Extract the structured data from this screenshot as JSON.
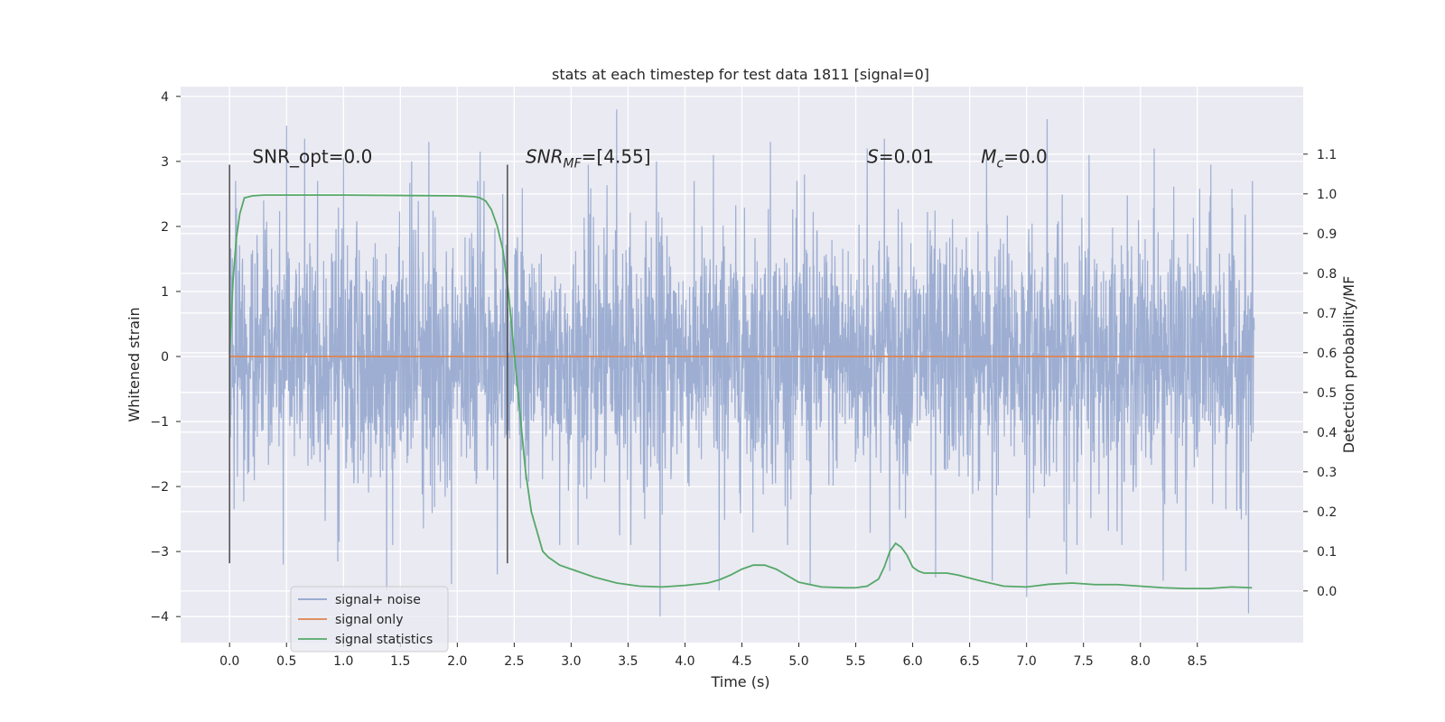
{
  "chart_data": {
    "type": "line",
    "title": "stats at each timestep for test data 1811 [signal=0]",
    "xlabel": "Time (s)",
    "ylabel": "Whitened strain",
    "y2label": "Detection probability/MF",
    "xlim": [
      -0.43,
      9.43
    ],
    "ylim": [
      -4.4,
      4.15
    ],
    "y2lim": [
      -0.13,
      1.27
    ],
    "xticks": [
      0.0,
      0.5,
      1.0,
      1.5,
      2.0,
      2.5,
      3.0,
      3.5,
      4.0,
      4.5,
      5.0,
      5.5,
      6.0,
      6.5,
      7.0,
      7.5,
      8.0,
      8.5
    ],
    "xtick_labels": [
      "0.0",
      "0.5",
      "1.0",
      "1.5",
      "2.0",
      "2.5",
      "3.0",
      "3.5",
      "4.0",
      "4.5",
      "5.0",
      "5.5",
      "6.0",
      "6.5",
      "7.0",
      "7.5",
      "8.0",
      "8.5"
    ],
    "yticks": [
      4,
      3,
      2,
      1,
      0,
      -1,
      -2,
      -3,
      -4
    ],
    "ytick_labels": [
      "4",
      "3",
      "2",
      "1",
      "0",
      "−1",
      "−2",
      "−3",
      "−4"
    ],
    "y2ticks": [
      1.1,
      1.0,
      0.9,
      0.8,
      0.7,
      0.6,
      0.5,
      0.4,
      0.3,
      0.2,
      0.1,
      0.0
    ],
    "y2tick_labels": [
      "1.1",
      "1.0",
      "0.9",
      "0.8",
      "0.7",
      "0.6",
      "0.5",
      "0.4",
      "0.3",
      "0.2",
      "0.1",
      "0.0"
    ],
    "grid": true,
    "legend_position": "bottom-left",
    "series": [
      {
        "name": "signal+ noise",
        "axis": "left",
        "kind": "noise",
        "color": "#8fa3cc",
        "t_start": 0.0,
        "t_end": 9.0,
        "approx_band": [
          -1.3,
          1.1
        ],
        "peaks_high": [
          [
            0.04,
            2.25
          ],
          [
            0.3,
            2.4
          ],
          [
            0.5,
            3.55
          ],
          [
            0.66,
            3.35
          ],
          [
            1.0,
            3.05
          ],
          [
            1.6,
            3.0
          ],
          [
            1.75,
            3.3
          ],
          [
            2.2,
            3.15
          ],
          [
            2.4,
            2.5
          ],
          [
            3.15,
            2.95
          ],
          [
            3.4,
            3.8
          ],
          [
            3.75,
            3.0
          ],
          [
            4.25,
            3.1
          ],
          [
            4.75,
            3.3
          ],
          [
            5.05,
            2.8
          ],
          [
            5.6,
            3.2
          ],
          [
            5.75,
            3.35
          ],
          [
            6.2,
            2.7
          ],
          [
            6.65,
            3.05
          ],
          [
            7.18,
            3.65
          ],
          [
            7.55,
            3.1
          ],
          [
            8.12,
            3.2
          ],
          [
            8.62,
            2.95
          ],
          [
            8.95,
            2.4
          ]
        ],
        "peaks_low": [
          [
            0.04,
            -2.35
          ],
          [
            0.47,
            -3.2
          ],
          [
            0.95,
            -3.15
          ],
          [
            1.38,
            -3.6
          ],
          [
            1.95,
            -3.5
          ],
          [
            2.35,
            -3.35
          ],
          [
            2.9,
            -2.9
          ],
          [
            3.78,
            -4.0
          ],
          [
            4.3,
            -3.6
          ],
          [
            5.1,
            -3.5
          ],
          [
            5.8,
            -3.3
          ],
          [
            6.2,
            -3.4
          ],
          [
            6.7,
            -3.45
          ],
          [
            7.0,
            -3.7
          ],
          [
            7.35,
            -3.35
          ],
          [
            8.2,
            -3.45
          ],
          [
            8.4,
            -3.3
          ],
          [
            8.95,
            -3.95
          ]
        ]
      },
      {
        "name": "signal only",
        "axis": "left",
        "kind": "line",
        "color": "#dd8452",
        "x": [
          0.0,
          9.0
        ],
        "y": [
          0.0,
          0.0
        ]
      },
      {
        "name": "signal statistics",
        "axis": "right",
        "kind": "line",
        "color": "#55a868",
        "x": [
          0.0,
          0.03,
          0.06,
          0.09,
          0.13,
          0.2,
          0.3,
          0.5,
          1.0,
          1.5,
          2.0,
          2.15,
          2.2,
          2.25,
          2.3,
          2.35,
          2.4,
          2.45,
          2.5,
          2.55,
          2.6,
          2.65,
          2.7,
          2.75,
          2.8,
          2.9,
          3.0,
          3.2,
          3.4,
          3.6,
          3.8,
          4.0,
          4.2,
          4.3,
          4.4,
          4.5,
          4.6,
          4.7,
          4.8,
          5.0,
          5.2,
          5.4,
          5.5,
          5.6,
          5.7,
          5.75,
          5.8,
          5.85,
          5.9,
          5.95,
          6.0,
          6.05,
          6.1,
          6.2,
          6.3,
          6.4,
          6.6,
          6.8,
          7.0,
          7.2,
          7.4,
          7.6,
          7.8,
          8.0,
          8.2,
          8.4,
          8.6,
          8.8,
          8.98
        ],
        "y": [
          0.6,
          0.78,
          0.89,
          0.95,
          0.99,
          0.995,
          0.997,
          0.997,
          0.997,
          0.996,
          0.995,
          0.993,
          0.99,
          0.982,
          0.96,
          0.92,
          0.86,
          0.75,
          0.6,
          0.45,
          0.3,
          0.2,
          0.15,
          0.1,
          0.085,
          0.065,
          0.055,
          0.035,
          0.02,
          0.012,
          0.01,
          0.014,
          0.02,
          0.028,
          0.04,
          0.055,
          0.065,
          0.065,
          0.055,
          0.022,
          0.01,
          0.008,
          0.008,
          0.012,
          0.03,
          0.06,
          0.1,
          0.12,
          0.11,
          0.09,
          0.06,
          0.05,
          0.045,
          0.045,
          0.045,
          0.04,
          0.025,
          0.012,
          0.01,
          0.017,
          0.02,
          0.016,
          0.016,
          0.012,
          0.008,
          0.006,
          0.006,
          0.01,
          0.008
        ]
      }
    ],
    "vlines": [
      {
        "x": 0.0,
        "y_from": -3.18,
        "y_to": 2.95
      },
      {
        "x": 2.44,
        "y_from": -3.18,
        "y_to": 2.95
      }
    ],
    "annotations": [
      {
        "id": "snr-opt",
        "text": "SNR_opt=0.0",
        "x": 0.2,
        "y": 2.95
      },
      {
        "id": "snr-mf",
        "text_italic": "SNR",
        "text_sub": "MF",
        "text_rest": "=[4.55]",
        "x": 2.6,
        "y": 2.95
      },
      {
        "id": "s-stat",
        "text_italic": "S",
        "text_rest": "=0.01",
        "x": 5.6,
        "y": 2.95
      },
      {
        "id": "mc",
        "text_italic": "M",
        "text_sub": "c",
        "text_rest": "=0.0",
        "x": 6.6,
        "y": 2.95
      }
    ]
  }
}
